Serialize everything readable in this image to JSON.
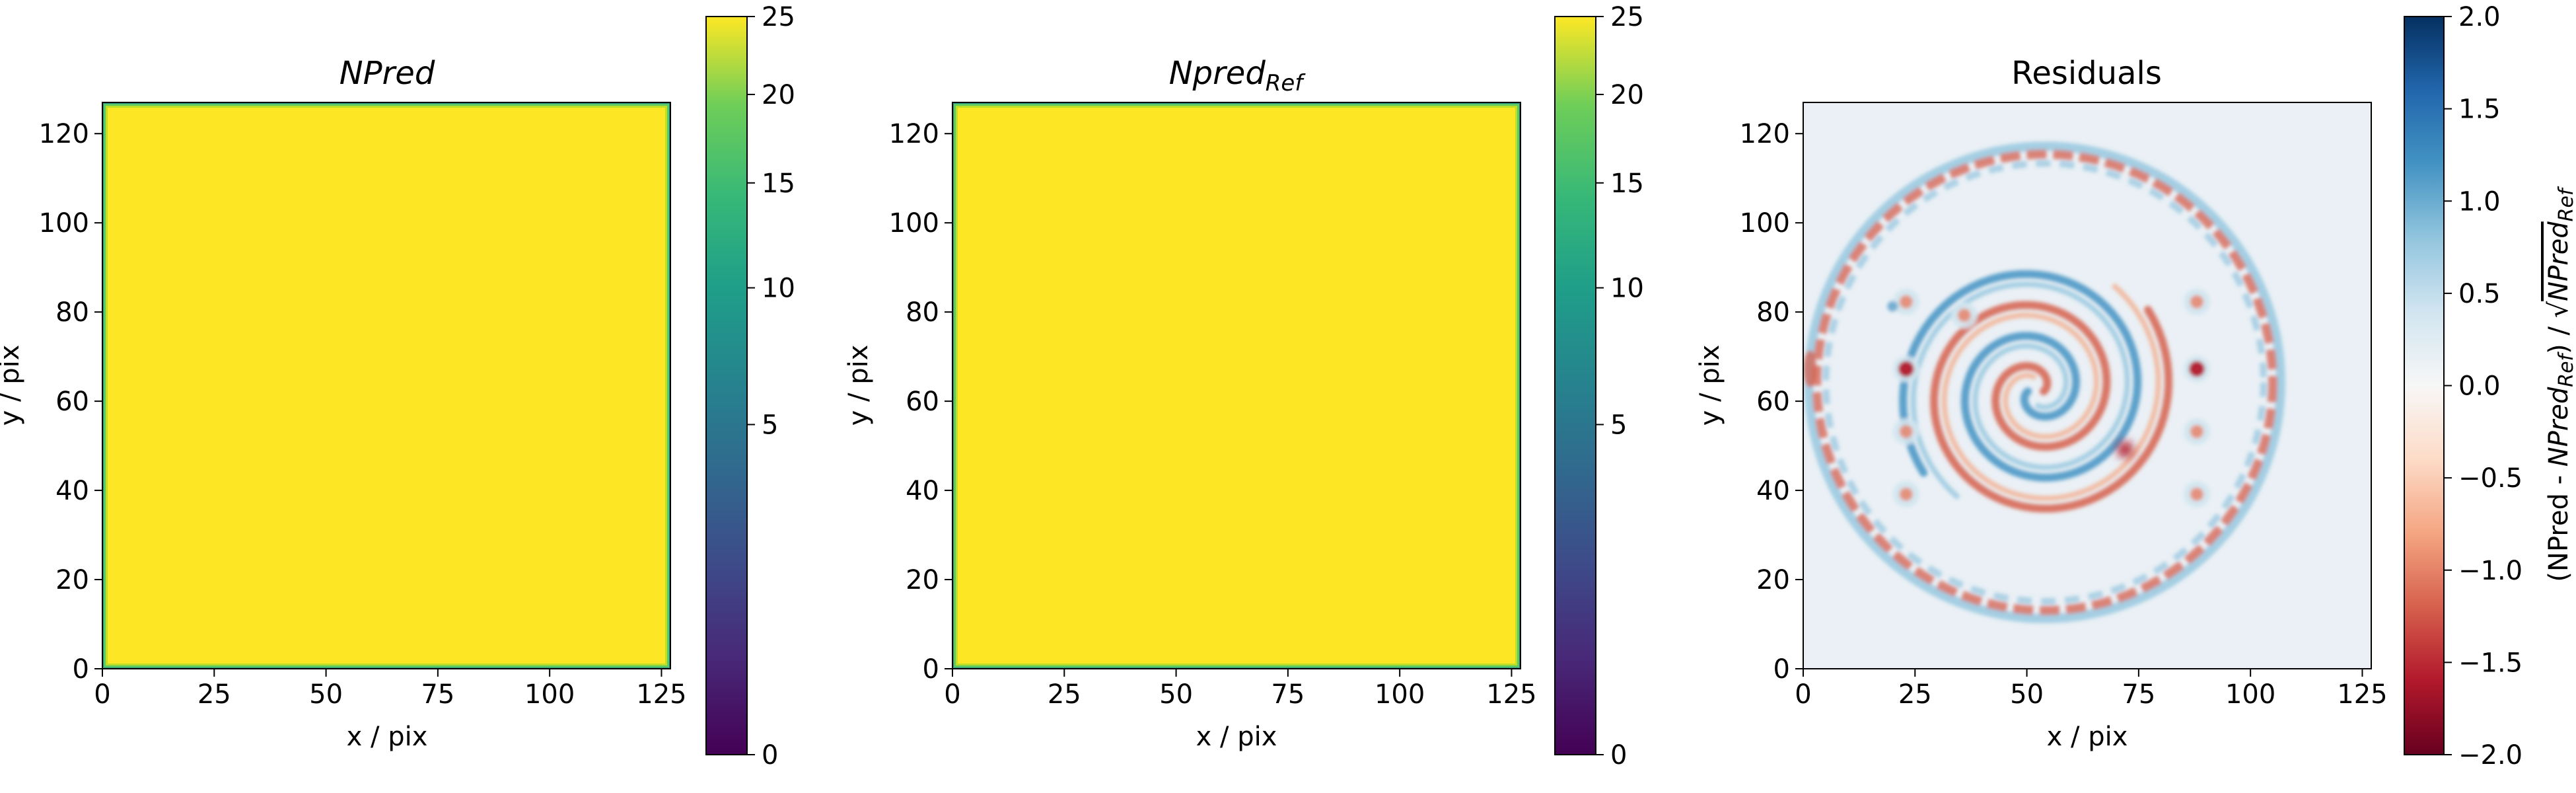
{
  "chart_data": [
    {
      "type": "heatmap",
      "title": "NPred",
      "xlabel": "x / pix",
      "ylabel": "y / pix",
      "xlim": [
        0,
        127
      ],
      "ylim": [
        0,
        127
      ],
      "xticks": [
        0,
        25,
        50,
        75,
        100,
        125
      ],
      "yticks": [
        0,
        20,
        40,
        60,
        80,
        100,
        120
      ],
      "colormap": "viridis",
      "colorbar": {
        "scale": "sqrt",
        "vmin": 0,
        "vmax": 25,
        "ticks": [
          0,
          5,
          10,
          15,
          20,
          25
        ]
      },
      "value_interior": 25,
      "value_edge": 0
    },
    {
      "type": "heatmap",
      "title": "Npred",
      "title_subscript": "Ref",
      "xlabel": "x / pix",
      "ylabel": "y / pix",
      "xlim": [
        0,
        127
      ],
      "ylim": [
        0,
        127
      ],
      "xticks": [
        0,
        25,
        50,
        75,
        100,
        125
      ],
      "yticks": [
        0,
        20,
        40,
        60,
        80,
        100,
        120
      ],
      "colormap": "viridis",
      "colorbar": {
        "scale": "sqrt",
        "vmin": 0,
        "vmax": 25,
        "ticks": [
          0,
          5,
          10,
          15,
          20,
          25
        ]
      },
      "value_interior": 25,
      "value_edge": 0
    },
    {
      "type": "heatmap",
      "title": "Residuals",
      "xlabel": "x / pix",
      "ylabel": "y / pix",
      "xlim": [
        0,
        127
      ],
      "ylim": [
        0,
        127
      ],
      "xticks": [
        0,
        25,
        50,
        75,
        100,
        125
      ],
      "yticks": [
        0,
        20,
        40,
        60,
        80,
        100,
        120
      ],
      "colormap": "RdBu",
      "colorbar": {
        "scale": "linear",
        "vmin": -2.0,
        "vmax": 2.0,
        "ticks": [
          -2.0,
          -1.5,
          -1.0,
          -0.5,
          0.0,
          0.5,
          1.0,
          1.5,
          2.0
        ],
        "tick_labels": [
          "−2.0",
          "−1.5",
          "−1.0",
          "−0.5",
          "0.0",
          "0.5",
          "1.0",
          "1.5",
          "2.0"
        ],
        "label_parts": [
          "(NPred - ",
          "NPred",
          "Ref",
          ") / √",
          "NPred",
          "Ref"
        ]
      },
      "features": {
        "ring_center": [
          54,
          64
        ],
        "ring_radius": 51,
        "spiral_center": [
          52,
          62
        ],
        "point_sources": [
          [
            23,
            39
          ],
          [
            23,
            53
          ],
          [
            23,
            67
          ],
          [
            23,
            82
          ],
          [
            88,
            39
          ],
          [
            88,
            53
          ],
          [
            88,
            67
          ],
          [
            88,
            82
          ],
          [
            36,
            79
          ]
        ]
      }
    }
  ]
}
